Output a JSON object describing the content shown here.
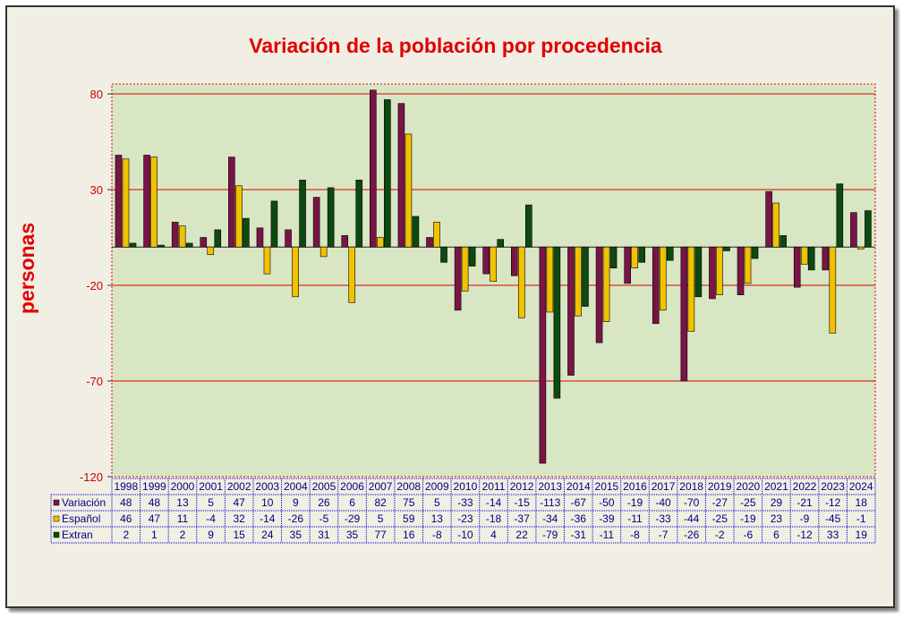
{
  "chart_data": {
    "type": "bar",
    "title": "Variación de la población por procedencia",
    "ylabel": "personas",
    "ylim": [
      -120,
      80
    ],
    "yticks": [
      80,
      30,
      -20,
      -70,
      -120
    ],
    "grid": true,
    "legend": "data-table",
    "categories": [
      "1998",
      "1999",
      "2000",
      "2001",
      "2002",
      "2003",
      "2004",
      "2005",
      "2006",
      "2007",
      "2008",
      "2009",
      "2010",
      "2011",
      "2012",
      "2013",
      "2014",
      "2015",
      "2016",
      "2017",
      "2018",
      "2019",
      "2020",
      "2021",
      "2022",
      "2023",
      "2024"
    ],
    "series": [
      {
        "name": "Variación",
        "color": "#7a1446",
        "values": [
          48,
          48,
          13,
          5,
          47,
          10,
          9,
          26,
          6,
          82,
          75,
          5,
          -33,
          -14,
          -15,
          -113,
          -67,
          -50,
          -19,
          -40,
          -70,
          -27,
          -25,
          29,
          -21,
          -12,
          18
        ]
      },
      {
        "name": "Español",
        "color": "#f2c200",
        "values": [
          46,
          47,
          11,
          -4,
          32,
          -14,
          -26,
          -5,
          -29,
          5,
          59,
          13,
          -23,
          -18,
          -37,
          -34,
          -36,
          -39,
          -11,
          -33,
          -44,
          -25,
          -19,
          23,
          -9,
          -45,
          -1
        ]
      },
      {
        "name": "Extran",
        "color": "#0c4a10",
        "values": [
          2,
          1,
          2,
          9,
          15,
          24,
          35,
          31,
          35,
          77,
          16,
          -8,
          -10,
          4,
          22,
          -79,
          -31,
          -11,
          -8,
          -7,
          -26,
          -2,
          -6,
          6,
          -12,
          33,
          19
        ]
      }
    ],
    "colors": {
      "plot_bg": "#d9e6c3",
      "gridline": "#e00000",
      "frame_bg": "#f1eee4",
      "table_text": "#000080"
    }
  }
}
